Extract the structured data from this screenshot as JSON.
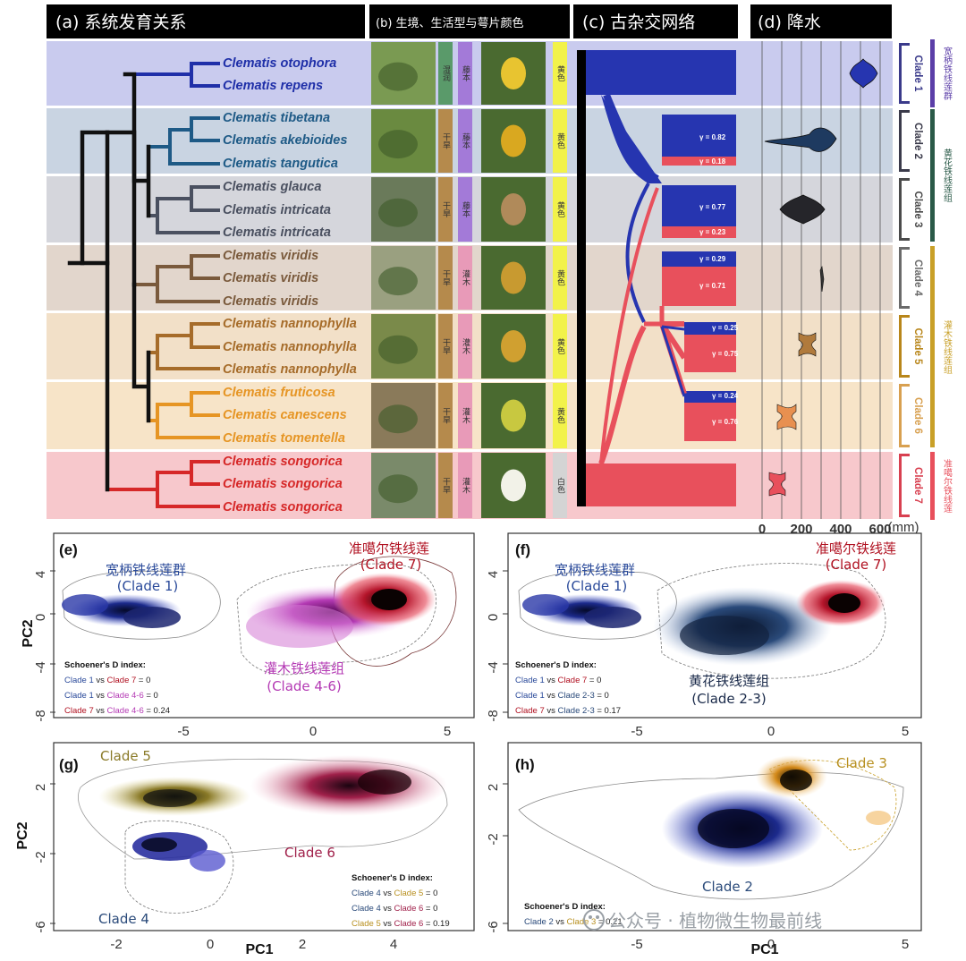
{
  "headers": {
    "a": "(a) 系统发育关系",
    "b": "(b) 生境、生活型与萼片颜色",
    "c": "(c) 古杂交网络",
    "d": "(d) 降水"
  },
  "species": [
    {
      "name": "Clematis otophora",
      "color": "#1f2fa8"
    },
    {
      "name": "Clematis repens",
      "color": "#1f2fa8"
    },
    {
      "name": "Clematis tibetana",
      "color": "#1e5a86"
    },
    {
      "name": "Clematis akebioides",
      "color": "#1e5a86"
    },
    {
      "name": "Clematis tangutica",
      "color": "#1e5a86"
    },
    {
      "name": "Clematis glauca",
      "color": "#4a5060"
    },
    {
      "name": "Clematis intricata",
      "color": "#4a5060"
    },
    {
      "name": "Clematis intricata",
      "color": "#4a5060"
    },
    {
      "name": "Clematis viridis",
      "color": "#7a5a3c"
    },
    {
      "name": "Clematis viridis",
      "color": "#7a5a3c"
    },
    {
      "name": "Clematis viridis",
      "color": "#7a5a3c"
    },
    {
      "name": "Clematis nannophylla",
      "color": "#a66c2a"
    },
    {
      "name": "Clematis nannophylla",
      "color": "#a66c2a"
    },
    {
      "name": "Clematis nannophylla",
      "color": "#a66c2a"
    },
    {
      "name": "Clematis fruticosa",
      "color": "#e69524"
    },
    {
      "name": "Clematis canescens",
      "color": "#e69524"
    },
    {
      "name": "Clematis tomentella",
      "color": "#e69524"
    },
    {
      "name": "Clematis songorica",
      "color": "#d62828"
    },
    {
      "name": "Clematis songorica",
      "color": "#d62828"
    },
    {
      "name": "Clematis songorica",
      "color": "#d62828"
    }
  ],
  "traits": [
    {
      "habitat": "湿润",
      "life": "藤本",
      "color": "黄色"
    },
    {
      "habitat": "干旱",
      "life": "藤本",
      "color": "黄色"
    },
    {
      "habitat": "干旱",
      "life": "藤本",
      "color": "黄色"
    },
    {
      "habitat": "干旱",
      "life": "灌木",
      "color": "黄色"
    },
    {
      "habitat": "干旱",
      "life": "灌木",
      "color": "黄色"
    },
    {
      "habitat": "干旱",
      "life": "灌木",
      "color": "黄色"
    },
    {
      "habitat": "干旱",
      "life": "灌木",
      "color": "白色"
    }
  ],
  "gammas": [
    "γ = 0.82",
    "γ = 0.18",
    "γ = 0.77",
    "γ = 0.23",
    "γ = 0.29",
    "γ = 0.71",
    "γ = 0.25",
    "γ = 0.75",
    "γ = 0.24",
    "γ = 0.76"
  ],
  "clades": [
    "Clade 1",
    "Clade 2",
    "Clade 3",
    "Clade 4",
    "Clade 5",
    "Clade 6",
    "Clade 7"
  ],
  "groups": [
    "宽柄铁线莲群",
    "黄花铁线莲组",
    "灌木铁线莲组",
    "准噶尔铁线莲"
  ],
  "precip_ticks": [
    "0",
    "200",
    "400",
    "600"
  ],
  "precip_unit": "(mm)",
  "panel_e": {
    "label": "(e)",
    "c1": [
      "宽柄铁线莲群",
      "(Clade 1)"
    ],
    "c7": [
      "准噶尔铁线莲",
      "(Clade 7)"
    ],
    "c46": [
      "灌木铁线莲组",
      "(Clade 4-6)"
    ],
    "sch_title": "Schoener's D index:",
    "sch": [
      [
        "Clade 1",
        " vs ",
        "Clade 7",
        " = 0"
      ],
      [
        "Clade 1",
        " vs ",
        "Clade 4-6",
        " = 0"
      ],
      [
        "Clade 7",
        " vs ",
        "Clade 4-6",
        " =  0.24"
      ]
    ],
    "yticks": [
      "4",
      "0",
      "-4",
      "-8"
    ],
    "xticks": [
      "-5",
      "0",
      "5"
    ],
    "ylabel": "PC2"
  },
  "panel_f": {
    "label": "(f)",
    "c1": [
      "宽柄铁线莲群",
      "(Clade 1)"
    ],
    "c7": [
      "准噶尔铁线莲",
      "(Clade 7)"
    ],
    "c23": [
      "黄花铁线莲组",
      "(Clade 2-3)"
    ],
    "sch_title": "Schoener's D index:",
    "sch": [
      [
        "Clade 1",
        " vs ",
        "Clade 7",
        " = 0"
      ],
      [
        "Clade 1",
        " vs ",
        "Clade 2-3",
        " = 0"
      ],
      [
        "Clade 7",
        " vs ",
        "Clade 2-3",
        " = 0.17"
      ]
    ],
    "yticks": [
      "4",
      "0",
      "-4",
      "-8"
    ],
    "xticks": [
      "-5",
      "0",
      "5"
    ]
  },
  "panel_g": {
    "label": "(g)",
    "c5": "Clade 5",
    "c6": "Clade 6",
    "c4": "Clade 4",
    "sch_title": "Schoener's D index:",
    "sch": [
      [
        "Clade 4",
        " vs ",
        "Clade 5",
        " = 0"
      ],
      [
        "Clade 4",
        " vs ",
        "Clade 6",
        " = 0"
      ],
      [
        "Clade 5",
        " vs ",
        "Clade 6",
        " = 0.19"
      ]
    ],
    "yticks": [
      "2",
      "-2",
      "-6"
    ],
    "xticks": [
      "-2",
      "0",
      "2",
      "4"
    ],
    "xlabel": "PC1",
    "ylabel": "PC2"
  },
  "panel_h": {
    "label": "(h)",
    "c3": "Clade 3",
    "c2": "Clade 2",
    "sch_title": "Schoener's D index:",
    "sch": [
      [
        "Clade 2",
        " vs ",
        "Clade 3",
        " = 0.21"
      ]
    ],
    "yticks": [
      "2",
      "-2",
      "-6"
    ],
    "xticks": [
      "-5",
      "0",
      "5"
    ],
    "xlabel": "PC1"
  },
  "watermark": "公众号 · 植物微生物最前线"
}
